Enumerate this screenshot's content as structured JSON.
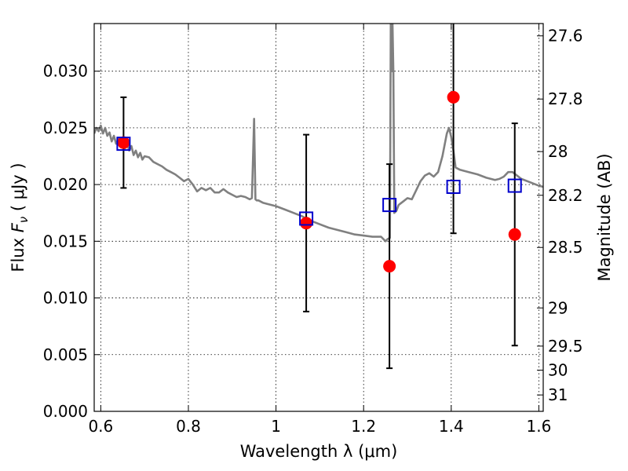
{
  "chart_data": {
    "type": "scatter",
    "xlabel": "Wavelength  λ (μm)",
    "ylabel": "Flux  F_ν  ( μJy )",
    "ylabel_parts": {
      "prefix": "Flux ",
      "symbol": "F",
      "subscript": "ν",
      "unit": " ( μJy )"
    },
    "y2label": "Magnitude (AB)",
    "xlim": [
      0.585,
      1.61
    ],
    "ylim": [
      0.0,
      0.0342
    ],
    "grid": true,
    "x_ticks": [
      0.6,
      0.8,
      1.0,
      1.2,
      1.4,
      1.6
    ],
    "x_tick_labels": [
      "0.6",
      "0.8",
      "1",
      "1.2",
      "1.4",
      "1.6"
    ],
    "y_ticks": [
      0.0,
      0.005,
      0.01,
      0.015,
      0.02,
      0.025,
      0.03
    ],
    "y_tick_labels": [
      "0.000",
      "0.005",
      "0.010",
      "0.015",
      "0.020",
      "0.025",
      "0.030"
    ],
    "y2_ticks": [
      {
        "label": "27.6",
        "value": 27.6
      },
      {
        "label": "27.8",
        "value": 27.8
      },
      {
        "label": "28",
        "value": 28.0
      },
      {
        "label": "28.2",
        "value": 28.2
      },
      {
        "label": "28.5",
        "value": 28.5
      },
      {
        "label": "29",
        "value": 29.0
      },
      {
        "label": "29.5",
        "value": 29.5
      },
      {
        "label": "30",
        "value": 30.0
      },
      {
        "label": "31",
        "value": 31.0
      }
    ],
    "series": [
      {
        "kind": "model_spectrum",
        "color": "#808080",
        "x": [
          0.585,
          0.59,
          0.595,
          0.6,
          0.605,
          0.61,
          0.615,
          0.62,
          0.625,
          0.63,
          0.635,
          0.64,
          0.645,
          0.65,
          0.655,
          0.66,
          0.665,
          0.67,
          0.675,
          0.68,
          0.685,
          0.69,
          0.695,
          0.7,
          0.71,
          0.72,
          0.73,
          0.74,
          0.75,
          0.76,
          0.77,
          0.78,
          0.79,
          0.8,
          0.81,
          0.82,
          0.83,
          0.84,
          0.85,
          0.86,
          0.87,
          0.88,
          0.89,
          0.9,
          0.91,
          0.92,
          0.93,
          0.94,
          0.945,
          0.95,
          0.953,
          0.956,
          0.96,
          0.97,
          0.98,
          1.0,
          1.02,
          1.04,
          1.06,
          1.08,
          1.1,
          1.12,
          1.14,
          1.16,
          1.18,
          1.2,
          1.22,
          1.24,
          1.25,
          1.255,
          1.26,
          1.262,
          1.264,
          1.266,
          1.268,
          1.27,
          1.275,
          1.28,
          1.29,
          1.3,
          1.31,
          1.32,
          1.33,
          1.34,
          1.35,
          1.36,
          1.37,
          1.38,
          1.39,
          1.395,
          1.4,
          1.405,
          1.41,
          1.42,
          1.44,
          1.46,
          1.48,
          1.5,
          1.51,
          1.52,
          1.53,
          1.54,
          1.56,
          1.58,
          1.6,
          1.61
        ],
        "y": [
          0.0245,
          0.025,
          0.0247,
          0.0252,
          0.0245,
          0.025,
          0.0243,
          0.0246,
          0.0238,
          0.0243,
          0.0236,
          0.024,
          0.0234,
          0.0238,
          0.0232,
          0.0236,
          0.023,
          0.0234,
          0.0226,
          0.023,
          0.0224,
          0.0228,
          0.0222,
          0.0225,
          0.0224,
          0.022,
          0.0218,
          0.0216,
          0.0213,
          0.0211,
          0.0209,
          0.0206,
          0.0203,
          0.0205,
          0.02,
          0.0194,
          0.0197,
          0.0195,
          0.0197,
          0.0193,
          0.0193,
          0.0196,
          0.0193,
          0.0191,
          0.0189,
          0.019,
          0.0189,
          0.0187,
          0.0188,
          0.0258,
          0.0187,
          0.0186,
          0.0186,
          0.0184,
          0.0183,
          0.0181,
          0.0178,
          0.0175,
          0.0172,
          0.0168,
          0.0165,
          0.0162,
          0.016,
          0.0158,
          0.0156,
          0.0155,
          0.0154,
          0.0154,
          0.015,
          0.0152,
          0.0153,
          0.0342,
          0.03,
          0.0342,
          0.03,
          0.0175,
          0.0177,
          0.0182,
          0.0185,
          0.0188,
          0.0187,
          0.0195,
          0.0203,
          0.0208,
          0.021,
          0.0207,
          0.0211,
          0.0225,
          0.0245,
          0.025,
          0.0242,
          0.023,
          0.0215,
          0.0213,
          0.0211,
          0.0209,
          0.0206,
          0.0204,
          0.0205,
          0.0207,
          0.0211,
          0.0211,
          0.0205,
          0.0202,
          0.0199,
          0.0198
        ]
      },
      {
        "kind": "observed",
        "color": "#ff0000",
        "x": [
          0.652,
          1.069,
          1.259,
          1.405,
          1.545
        ],
        "y": [
          0.0237,
          0.0166,
          0.0128,
          0.0277,
          0.0156
        ],
        "yerr": [
          0.004,
          0.0078,
          0.009,
          0.012,
          0.0098
        ]
      },
      {
        "kind": "synthetic",
        "color": "#0000cc",
        "x": [
          0.652,
          1.069,
          1.259,
          1.405,
          1.545
        ],
        "y": [
          0.0236,
          0.017,
          0.0182,
          0.0198,
          0.0199
        ]
      }
    ]
  }
}
